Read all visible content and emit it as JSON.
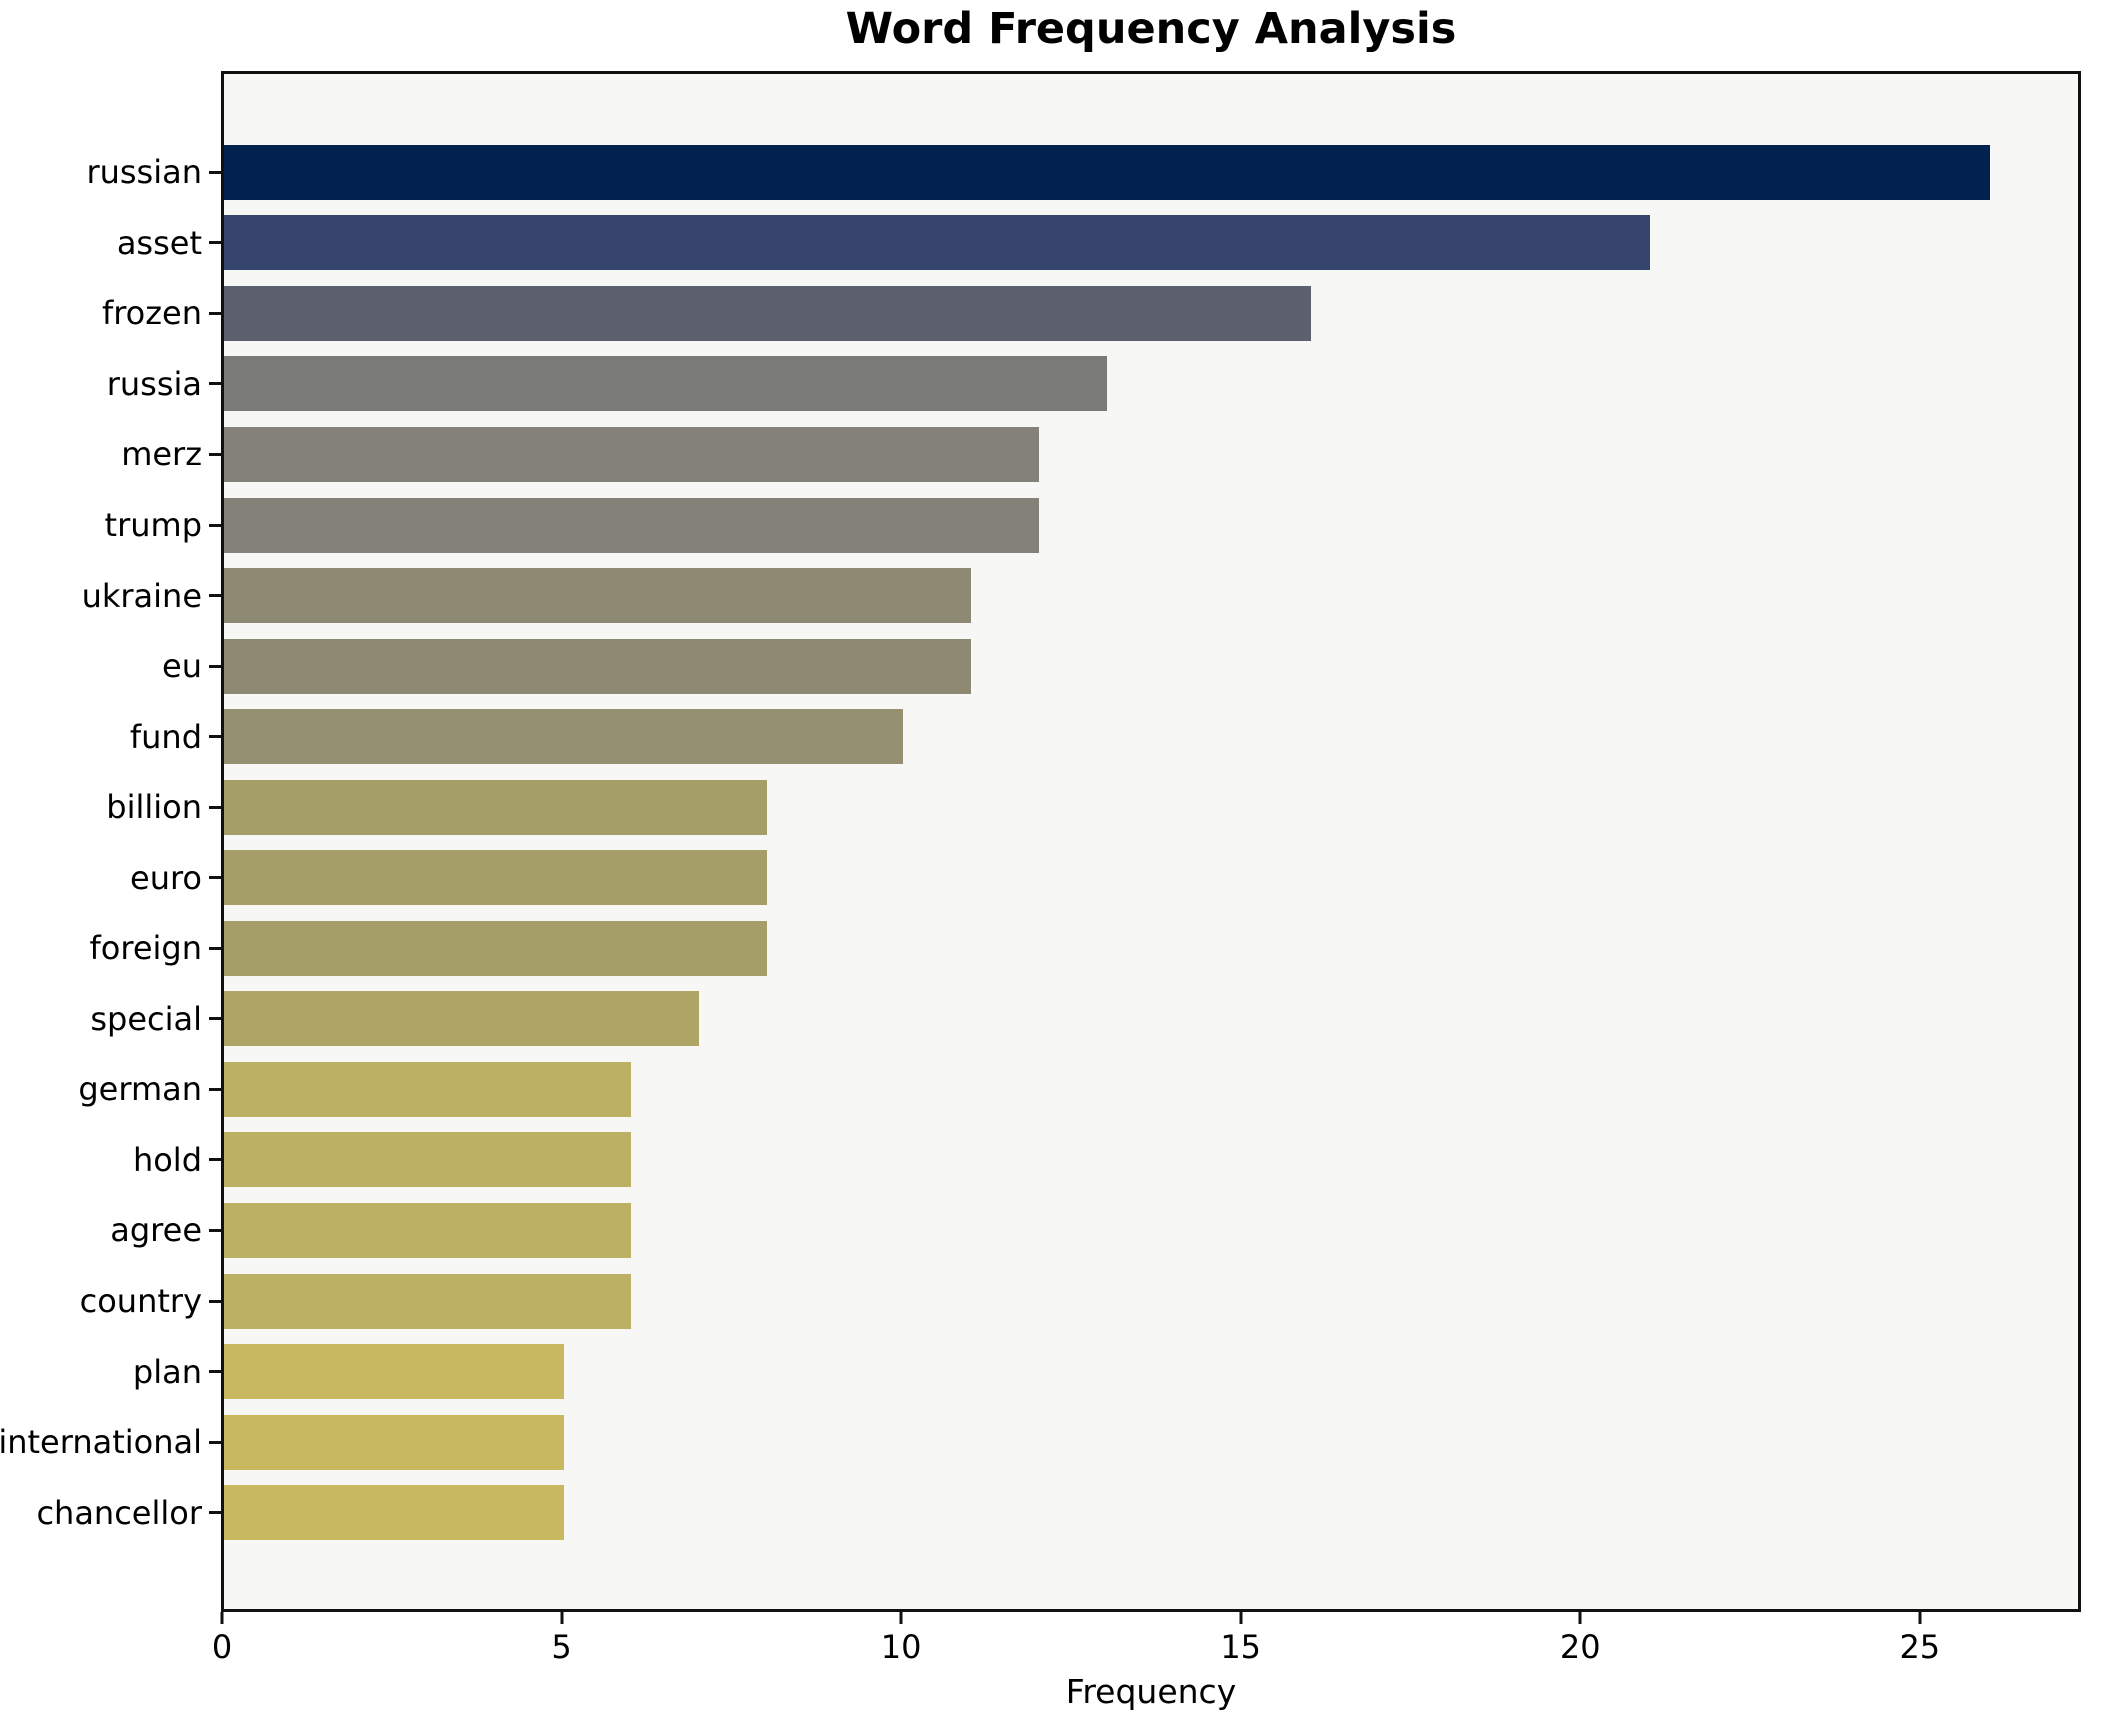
{
  "chart_data": {
    "type": "bar",
    "orientation": "horizontal",
    "title": "Word Frequency Analysis",
    "xlabel": "Frequency",
    "ylabel": "",
    "categories": [
      "russian",
      "asset",
      "frozen",
      "russia",
      "merz",
      "trump",
      "ukraine",
      "eu",
      "fund",
      "billion",
      "euro",
      "foreign",
      "special",
      "german",
      "hold",
      "agree",
      "country",
      "plan",
      "international",
      "chancellor"
    ],
    "values": [
      26,
      21,
      16,
      13,
      12,
      12,
      11,
      11,
      10,
      8,
      8,
      8,
      7,
      6,
      6,
      6,
      6,
      5,
      5,
      5
    ],
    "bar_colors": [
      "#01224e",
      "#35456c",
      "#5d616e",
      "#7a7a76",
      "#848178",
      "#848178",
      "#8d8973",
      "#8d8973",
      "#959070",
      "#a69e69",
      "#a69e69",
      "#a69e69",
      "#aea465",
      "#bcb064",
      "#bcb064",
      "#bcb064",
      "#bcb064",
      "#c8b960",
      "#c8b960",
      "#c8b960"
    ],
    "xticks": [
      0,
      5,
      10,
      15,
      20,
      25
    ],
    "xlim": [
      0,
      27.3
    ],
    "grid": false,
    "legend": false,
    "colors": {
      "plot_bg": "#f7f7f6",
      "figure_bg": "#ffffff",
      "spine": "#111111",
      "text": "#000000"
    }
  }
}
